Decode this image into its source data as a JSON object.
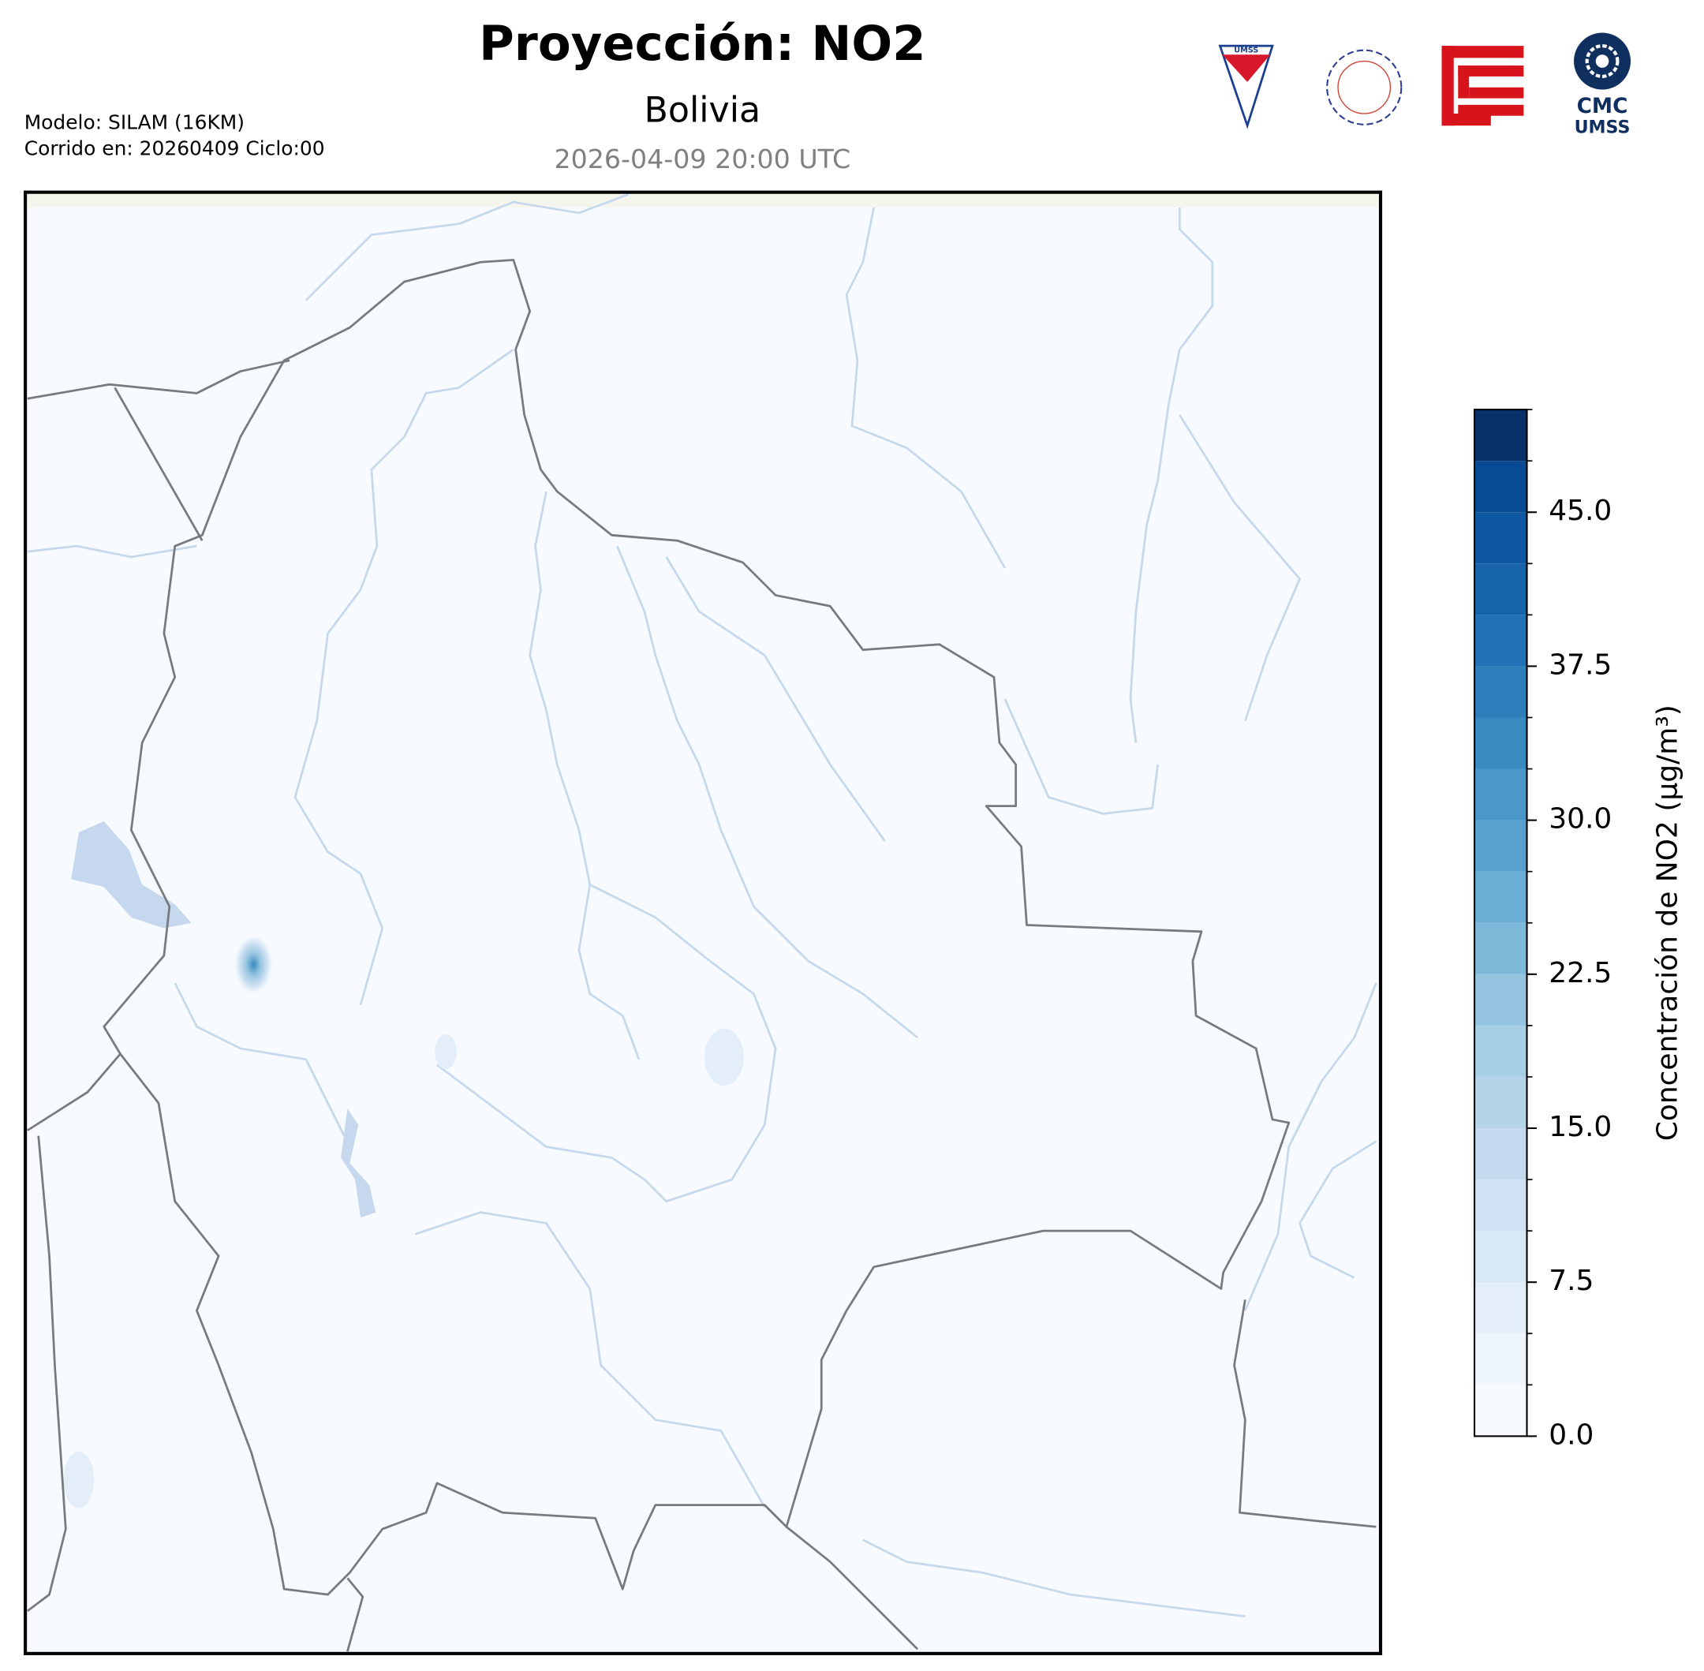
{
  "header": {
    "title": "Proyección: NO2",
    "subtitle": "Bolivia",
    "datetime": "2026-04-09 20:00 UTC",
    "model_info": [
      "Modelo: SILAM (16KM)",
      "Corrido en: 20260409 Ciclo:00"
    ]
  },
  "logos": {
    "umss_badge": "UMSS",
    "cmc": [
      "CMC",
      "UMSS"
    ]
  },
  "colorbar": {
    "label": "Concentración de NO2 (µg/m³)",
    "lim": [
      0,
      50
    ],
    "levels": [
      0,
      2.5,
      5,
      7.5,
      10,
      12.5,
      15,
      17.5,
      20,
      22.5,
      25,
      27.5,
      30,
      32.5,
      35,
      37.5,
      40,
      42.5,
      45,
      47.5,
      50
    ],
    "colors": [
      "#f7fbff",
      "#eef5fc",
      "#e3eef9",
      "#d9e8f5",
      "#cfe1f2",
      "#c4dbef",
      "#b5d4e9",
      "#a6cee4",
      "#94c4df",
      "#7fb9da",
      "#6aaed6",
      "#58a1cf",
      "#4a97c9",
      "#3a8ac2",
      "#2e7ebc",
      "#2171b5",
      "#1764ab",
      "#0d58a1",
      "#084b93",
      "#08306b"
    ],
    "ticks": [
      {
        "value": 0,
        "label": "0.0"
      },
      {
        "value": 7.5,
        "label": "7.5"
      },
      {
        "value": 15,
        "label": "15.0"
      },
      {
        "value": 22.5,
        "label": "22.5"
      },
      {
        "value": 30,
        "label": "30.0"
      },
      {
        "value": 37.5,
        "label": "37.5"
      },
      {
        "value": 45,
        "label": "45.0"
      }
    ]
  }
}
